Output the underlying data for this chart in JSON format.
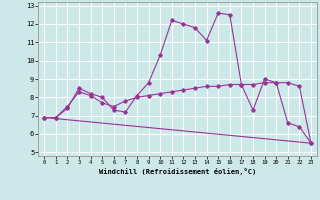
{
  "background_color": "#cce8e8",
  "grid_color": "#ffffff",
  "line_color": "#993399",
  "xlabel": "Windchill (Refroidissement éolien,°C)",
  "xlim": [
    -0.5,
    23.5
  ],
  "ylim": [
    4.8,
    13.2
  ],
  "yticks": [
    5,
    6,
    7,
    8,
    9,
    10,
    11,
    12,
    13
  ],
  "xticks": [
    0,
    1,
    2,
    3,
    4,
    5,
    6,
    7,
    8,
    9,
    10,
    11,
    12,
    13,
    14,
    15,
    16,
    17,
    18,
    19,
    20,
    21,
    22,
    23
  ],
  "lines": [
    {
      "x": [
        0,
        1,
        2,
        3,
        4,
        5,
        6,
        7,
        8,
        9,
        10,
        11,
        12,
        13,
        14,
        15,
        16,
        17,
        18,
        19,
        20,
        21,
        22,
        23
      ],
      "y": [
        6.9,
        6.9,
        7.4,
        8.5,
        8.2,
        8.0,
        7.3,
        7.2,
        8.1,
        8.8,
        10.3,
        12.2,
        12.0,
        11.8,
        11.1,
        12.6,
        12.5,
        8.7,
        7.3,
        9.0,
        8.8,
        6.6,
        6.4,
        5.5
      ]
    },
    {
      "x": [
        0,
        1,
        2,
        3,
        4,
        5,
        6,
        7,
        8,
        9,
        10,
        11,
        12,
        13,
        14,
        15,
        16,
        17,
        18,
        19,
        20,
        21,
        22,
        23
      ],
      "y": [
        6.9,
        6.9,
        7.5,
        8.3,
        8.1,
        7.7,
        7.5,
        7.8,
        8.0,
        8.1,
        8.2,
        8.3,
        8.4,
        8.5,
        8.6,
        8.6,
        8.7,
        8.7,
        8.7,
        8.8,
        8.8,
        8.8,
        8.6,
        5.5
      ]
    },
    {
      "x": [
        0,
        23
      ],
      "y": [
        6.9,
        5.5
      ]
    }
  ]
}
